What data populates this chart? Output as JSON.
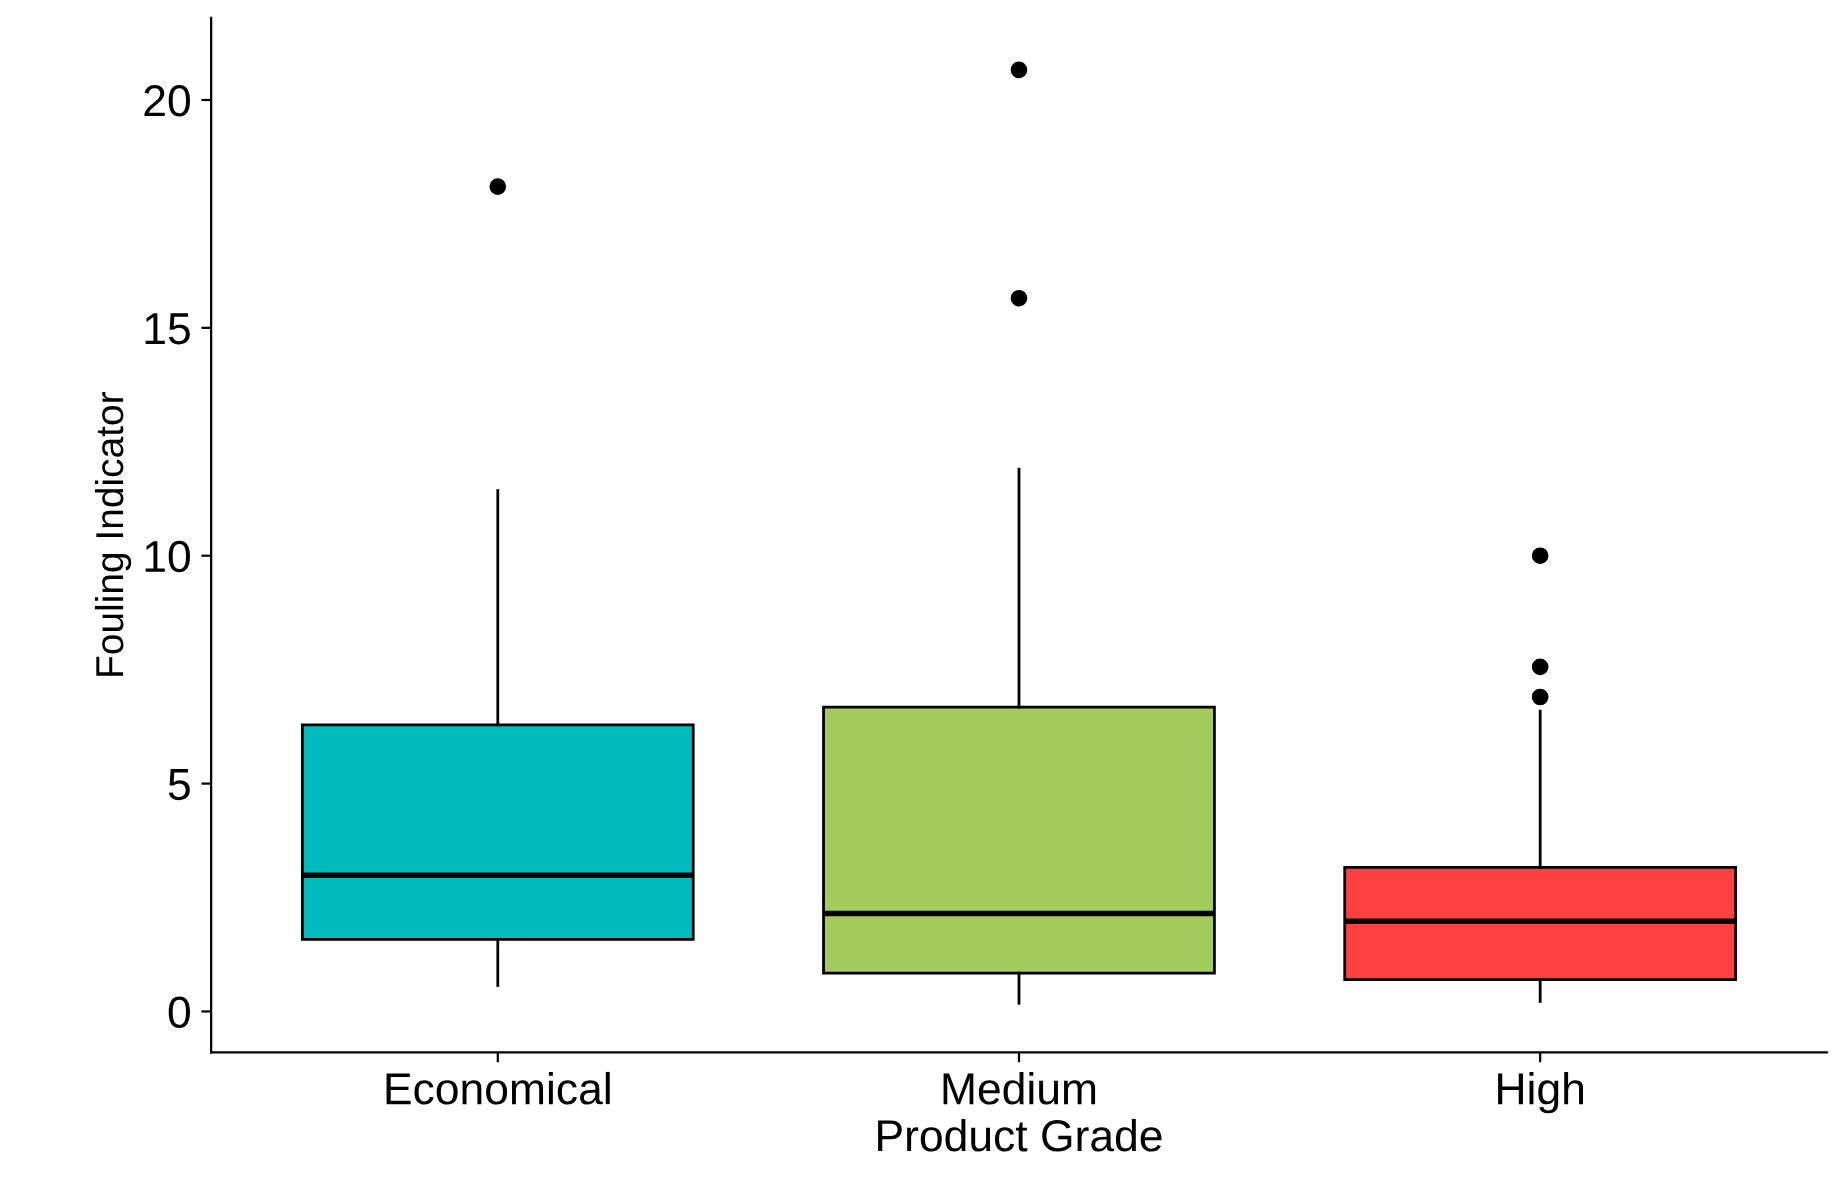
{
  "chart_data": {
    "type": "box",
    "xlabel": "Product Grade",
    "ylabel": "Fouling Indicator",
    "categories": [
      "Economical",
      "Medium",
      "High"
    ],
    "colors": [
      "#00bcbc",
      "#a3cc5c",
      "#ff4040"
    ],
    "boxes": [
      {
        "low": 0.57,
        "q1": 1.58,
        "median": 2.99,
        "q3": 6.29,
        "high": 11.43,
        "outliers": [
          18.1
        ]
      },
      {
        "low": 0.18,
        "q1": 0.84,
        "median": 2.15,
        "q3": 6.68,
        "high": 11.9,
        "outliers": [
          20.66,
          15.65
        ]
      },
      {
        "low": 0.22,
        "q1": 0.7,
        "median": 1.98,
        "q3": 3.16,
        "high": 6.59,
        "outliers": [
          10.0,
          7.56,
          6.9
        ]
      }
    ],
    "ylim": [
      -0.9,
      21.8
    ],
    "yticks": [
      0,
      5,
      10,
      15,
      20
    ],
    "grid": false
  }
}
